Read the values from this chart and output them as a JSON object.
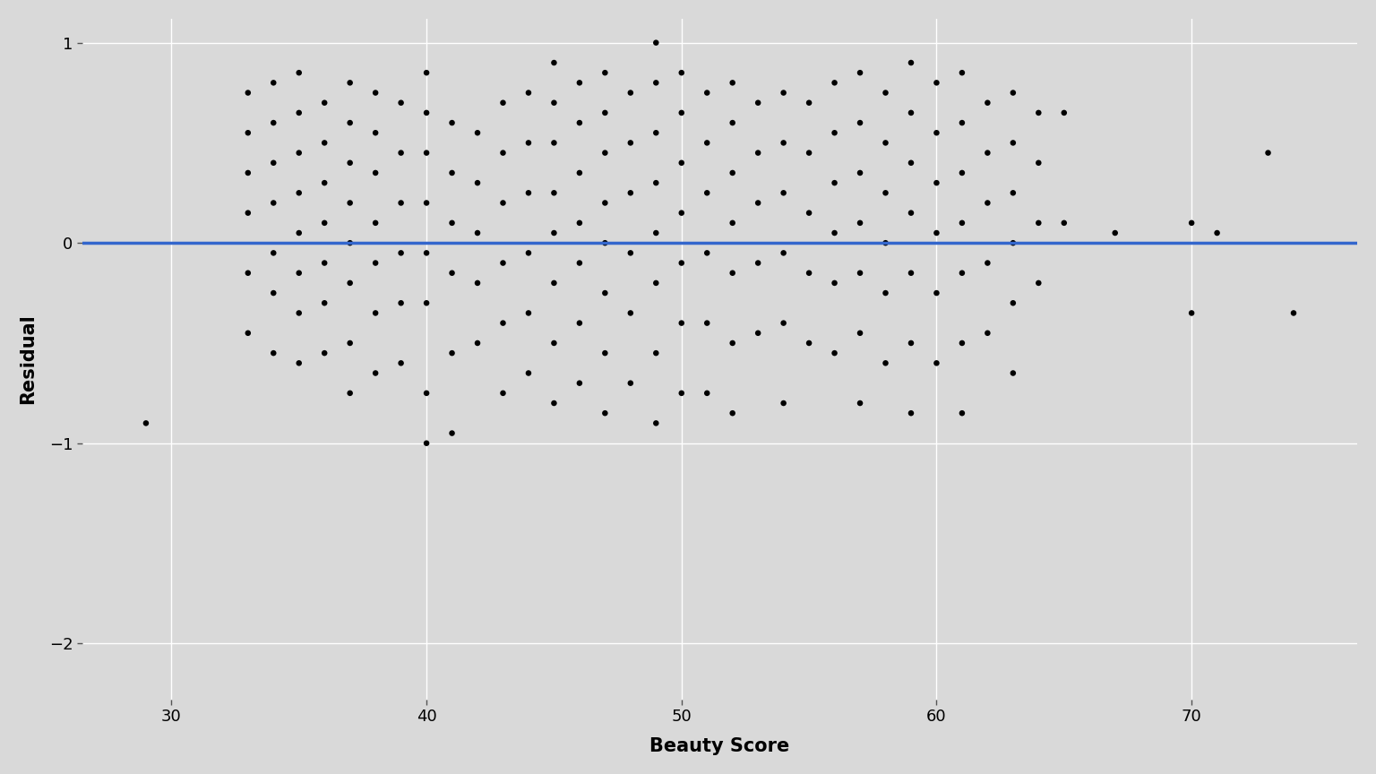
{
  "xlabel": "Beauty Score",
  "ylabel": "Residual",
  "xlim": [
    26.5,
    76.5
  ],
  "ylim": [
    -2.28,
    1.12
  ],
  "xticks": [
    30,
    40,
    50,
    60,
    70
  ],
  "yticks": [
    -2,
    -1,
    0,
    1
  ],
  "hline_y": 0,
  "hline_color": "#3366CC",
  "bg_color": "#D9D9D9",
  "grid_color": "#FFFFFF",
  "dot_color": "#000000",
  "dot_size": 22,
  "font_size_label": 15,
  "font_size_tick": 13,
  "scatter_x": [
    29,
    33,
    33,
    33,
    33,
    33,
    33,
    34,
    34,
    34,
    34,
    34,
    34,
    34,
    35,
    35,
    35,
    35,
    35,
    35,
    35,
    35,
    36,
    36,
    36,
    36,
    36,
    36,
    36,
    37,
    37,
    37,
    37,
    37,
    37,
    37,
    37,
    38,
    38,
    38,
    38,
    38,
    38,
    38,
    39,
    39,
    39,
    39,
    39,
    39,
    40,
    40,
    40,
    40,
    40,
    40,
    40,
    40,
    41,
    41,
    41,
    41,
    41,
    41,
    42,
    42,
    42,
    42,
    42,
    43,
    43,
    43,
    43,
    43,
    43,
    44,
    44,
    44,
    44,
    44,
    44,
    45,
    45,
    45,
    45,
    45,
    45,
    45,
    45,
    46,
    46,
    46,
    46,
    46,
    46,
    46,
    47,
    47,
    47,
    47,
    47,
    47,
    47,
    47,
    48,
    48,
    48,
    48,
    48,
    48,
    49,
    49,
    49,
    49,
    49,
    49,
    49,
    49,
    50,
    50,
    50,
    50,
    50,
    50,
    50,
    51,
    51,
    51,
    51,
    51,
    51,
    52,
    52,
    52,
    52,
    52,
    52,
    52,
    53,
    53,
    53,
    53,
    53,
    54,
    54,
    54,
    54,
    54,
    54,
    55,
    55,
    55,
    55,
    55,
    56,
    56,
    56,
    56,
    56,
    56,
    57,
    57,
    57,
    57,
    57,
    57,
    57,
    58,
    58,
    58,
    58,
    58,
    58,
    59,
    59,
    59,
    59,
    59,
    59,
    59,
    60,
    60,
    60,
    60,
    60,
    60,
    61,
    61,
    61,
    61,
    61,
    61,
    61,
    62,
    62,
    62,
    62,
    62,
    63,
    63,
    63,
    63,
    63,
    63,
    64,
    64,
    64,
    64,
    65,
    65,
    67,
    70,
    70,
    71,
    73,
    74
  ],
  "scatter_y": [
    -0.9,
    0.75,
    0.55,
    0.35,
    0.15,
    -0.15,
    -0.45,
    0.8,
    0.6,
    0.4,
    0.2,
    -0.05,
    -0.25,
    -0.55,
    0.85,
    0.65,
    0.45,
    0.25,
    0.05,
    -0.15,
    -0.35,
    -0.6,
    0.7,
    0.5,
    0.3,
    0.1,
    -0.1,
    -0.3,
    -0.55,
    0.8,
    0.6,
    0.4,
    0.2,
    0.0,
    -0.2,
    -0.5,
    -0.75,
    0.75,
    0.55,
    0.35,
    0.1,
    -0.1,
    -0.35,
    -0.65,
    0.7,
    0.45,
    0.2,
    -0.05,
    -0.3,
    -0.6,
    0.85,
    0.65,
    0.45,
    0.2,
    -0.05,
    -0.3,
    -0.75,
    -1.0,
    0.6,
    0.35,
    0.1,
    -0.15,
    -0.55,
    -0.95,
    0.55,
    0.3,
    0.05,
    -0.2,
    -0.5,
    0.7,
    0.45,
    0.2,
    -0.1,
    -0.4,
    -0.75,
    0.75,
    0.5,
    0.25,
    -0.05,
    -0.35,
    -0.65,
    0.9,
    0.7,
    0.5,
    0.25,
    0.05,
    -0.2,
    -0.5,
    -0.8,
    0.8,
    0.6,
    0.35,
    0.1,
    -0.1,
    -0.4,
    -0.7,
    0.85,
    0.65,
    0.45,
    0.2,
    0.0,
    -0.25,
    -0.55,
    -0.85,
    0.75,
    0.5,
    0.25,
    -0.05,
    -0.35,
    -0.7,
    1.0,
    0.8,
    0.55,
    0.3,
    0.05,
    -0.2,
    -0.55,
    -0.9,
    0.85,
    0.65,
    0.4,
    0.15,
    -0.1,
    -0.4,
    -0.75,
    0.75,
    0.5,
    0.25,
    -0.05,
    -0.4,
    -0.75,
    0.8,
    0.6,
    0.35,
    0.1,
    -0.15,
    -0.5,
    -0.85,
    0.7,
    0.45,
    0.2,
    -0.1,
    -0.45,
    0.75,
    0.5,
    0.25,
    -0.05,
    -0.4,
    -0.8,
    0.7,
    0.45,
    0.15,
    -0.15,
    -0.5,
    0.8,
    0.55,
    0.3,
    0.05,
    -0.2,
    -0.55,
    0.85,
    0.6,
    0.35,
    0.1,
    -0.15,
    -0.45,
    -0.8,
    0.75,
    0.5,
    0.25,
    0.0,
    -0.25,
    -0.6,
    0.9,
    0.65,
    0.4,
    0.15,
    -0.15,
    -0.5,
    -0.85,
    0.8,
    0.55,
    0.3,
    0.05,
    -0.25,
    -0.6,
    0.85,
    0.6,
    0.35,
    0.1,
    -0.15,
    -0.5,
    -0.85,
    0.7,
    0.45,
    0.2,
    -0.1,
    -0.45,
    0.75,
    0.5,
    0.25,
    0.0,
    -0.3,
    -0.65,
    0.65,
    0.4,
    0.1,
    -0.2,
    0.65,
    0.1,
    0.05,
    0.1,
    -0.35,
    0.05,
    0.45,
    -0.35
  ]
}
